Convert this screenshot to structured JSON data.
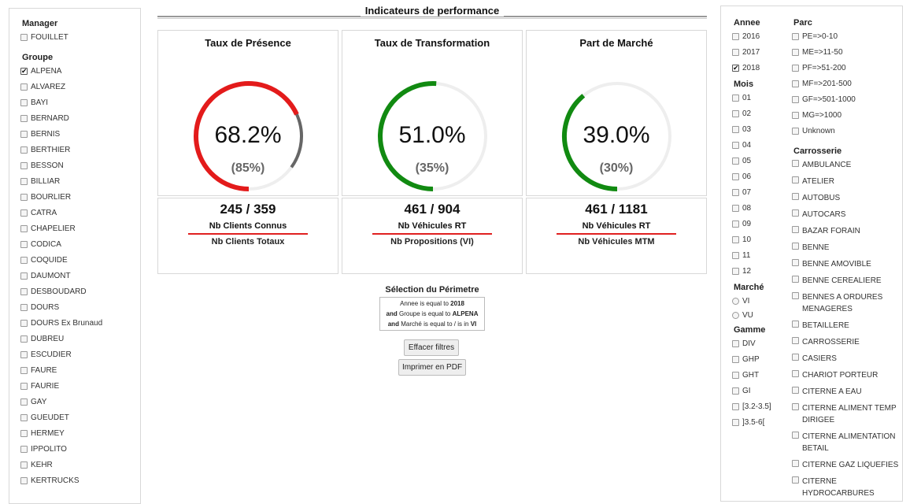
{
  "left": {
    "manager_title": "Manager",
    "manager_items": [
      {
        "label": "FOUILLET",
        "checked": false
      }
    ],
    "groupe_title": "Groupe",
    "groupe_items": [
      {
        "label": "ALPENA",
        "checked": true
      },
      {
        "label": "ALVAREZ",
        "checked": false
      },
      {
        "label": "BAYI",
        "checked": false
      },
      {
        "label": "BERNARD",
        "checked": false
      },
      {
        "label": "BERNIS",
        "checked": false
      },
      {
        "label": "BERTHIER",
        "checked": false
      },
      {
        "label": "BESSON",
        "checked": false
      },
      {
        "label": "BILLIAR",
        "checked": false
      },
      {
        "label": "BOURLIER",
        "checked": false
      },
      {
        "label": "CATRA",
        "checked": false
      },
      {
        "label": "CHAPELIER",
        "checked": false
      },
      {
        "label": "CODICA",
        "checked": false
      },
      {
        "label": "COQUIDE",
        "checked": false
      },
      {
        "label": "DAUMONT",
        "checked": false
      },
      {
        "label": "DESBOUDARD",
        "checked": false
      },
      {
        "label": "DOURS",
        "checked": false
      },
      {
        "label": "DOURS Ex Brunaud",
        "checked": false
      },
      {
        "label": "DUBREU",
        "checked": false
      },
      {
        "label": "ESCUDIER",
        "checked": false
      },
      {
        "label": "FAURE",
        "checked": false
      },
      {
        "label": "FAURIE",
        "checked": false
      },
      {
        "label": "GAY",
        "checked": false
      },
      {
        "label": "GUEUDET",
        "checked": false
      },
      {
        "label": "HERMEY",
        "checked": false
      },
      {
        "label": "IPPOLITO",
        "checked": false
      },
      {
        "label": "KEHR",
        "checked": false
      },
      {
        "label": "KERTRUCKS",
        "checked": false
      }
    ]
  },
  "header": {
    "title": "Indicateurs de performance"
  },
  "kpis": [
    {
      "title": "Taux de Présence",
      "value_label": "68.2%",
      "value": 0.682,
      "target_label": "(85%)",
      "target": 0.85,
      "arc_color": "#e31b1b",
      "target_arc_color": "#666666",
      "track_color": "#eeeeee",
      "ratio": "245 / 359",
      "numerator_label": "Nb Clients Connus",
      "denominator_label": "Nb Clients Totaux"
    },
    {
      "title": "Taux de Transformation",
      "value_label": "51.0%",
      "value": 0.51,
      "target_label": "(35%)",
      "target": 0.35,
      "arc_color": "#118a11",
      "target_arc_color": "#666666",
      "track_color": "#eeeeee",
      "ratio": "461 / 904",
      "numerator_label": "Nb Véhicules RT",
      "denominator_label": "Nb Propositions (VI)"
    },
    {
      "title": "Part de Marché",
      "value_label": "39.0%",
      "value": 0.39,
      "target_label": "(30%)",
      "target": 0.3,
      "arc_color": "#118a11",
      "target_arc_color": "#666666",
      "track_color": "#eeeeee",
      "ratio": "461 / 1181",
      "numerator_label": "Nb Véhicules RT",
      "denominator_label": "Nb Véhicules MTM"
    }
  ],
  "perimetre": {
    "title": "Sélection du Périmetre",
    "lines": [
      {
        "prefix": "",
        "text": "Annee is equal to",
        "value": "2018"
      },
      {
        "prefix": "and",
        "text": "Groupe is equal to",
        "value": "ALPENA"
      },
      {
        "prefix": "and",
        "text": "Marché is equal to / is in",
        "value": "VI"
      }
    ]
  },
  "buttons": {
    "clear": "Effacer filtres",
    "pdf": "Imprimer en PDF"
  },
  "right": {
    "annee_title": "Annee",
    "annee_items": [
      {
        "label": "2016",
        "checked": false
      },
      {
        "label": "2017",
        "checked": false
      },
      {
        "label": "2018",
        "checked": true
      }
    ],
    "mois_title": "Mois",
    "mois_items": [
      {
        "label": "01"
      },
      {
        "label": "02"
      },
      {
        "label": "03"
      },
      {
        "label": "04"
      },
      {
        "label": "05"
      },
      {
        "label": "06"
      },
      {
        "label": "07"
      },
      {
        "label": "08"
      },
      {
        "label": "09"
      },
      {
        "label": "10"
      },
      {
        "label": "11"
      },
      {
        "label": "12"
      }
    ],
    "marche_title": "Marché",
    "marche_items": [
      {
        "label": "VI"
      },
      {
        "label": "VU"
      }
    ],
    "gamme_title": "Gamme",
    "gamme_items": [
      {
        "label": "DIV"
      },
      {
        "label": "GHP"
      },
      {
        "label": "GHT"
      },
      {
        "label": "GI"
      },
      {
        "label": "[3.2-3.5]"
      },
      {
        "label": "]3.5-6["
      }
    ],
    "parc_title": "Parc",
    "parc_items": [
      {
        "label": "PE=>0-10"
      },
      {
        "label": "ME=>11-50"
      },
      {
        "label": "PF=>51-200"
      },
      {
        "label": "MF=>201-500"
      },
      {
        "label": "GF=>501-1000"
      },
      {
        "label": "MG=>1000"
      },
      {
        "label": "Unknown"
      }
    ],
    "carrosserie_title": "Carrosserie",
    "carrosserie_items": [
      {
        "label": "AMBULANCE"
      },
      {
        "label": "ATELIER"
      },
      {
        "label": "AUTOBUS"
      },
      {
        "label": "AUTOCARS"
      },
      {
        "label": "BAZAR FORAIN"
      },
      {
        "label": "BENNE"
      },
      {
        "label": "BENNE AMOVIBLE"
      },
      {
        "label": "BENNE CEREALIERE"
      },
      {
        "label": "BENNES A ORDURES MENAGERES"
      },
      {
        "label": "BETAILLERE"
      },
      {
        "label": "CARROSSERIE"
      },
      {
        "label": "CASIERS"
      },
      {
        "label": "CHARIOT PORTEUR"
      },
      {
        "label": "CITERNE A EAU"
      },
      {
        "label": "CITERNE ALIMENT TEMP DIRIGEE"
      },
      {
        "label": "CITERNE ALIMENTATION BETAIL"
      },
      {
        "label": "CITERNE GAZ LIQUEFIES"
      },
      {
        "label": "CITERNE HYDROCARBURES LEGERS"
      }
    ]
  }
}
